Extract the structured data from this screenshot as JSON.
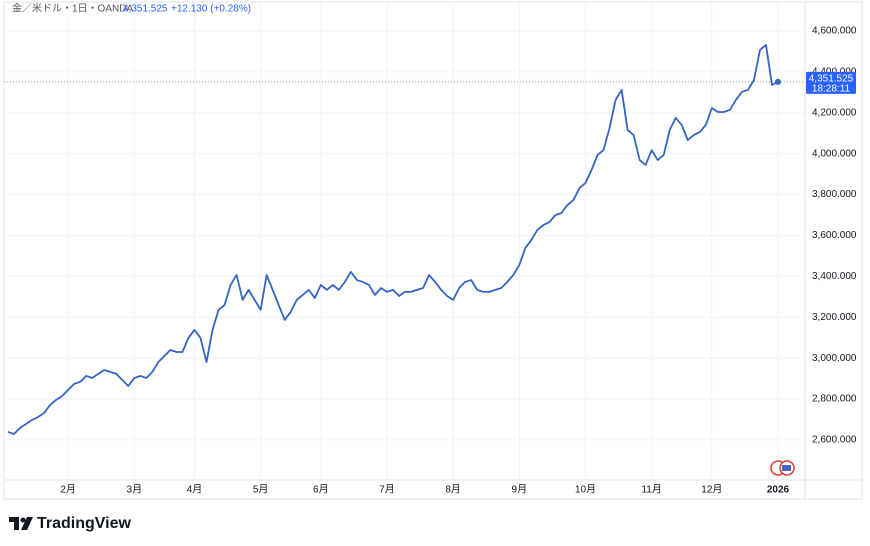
{
  "header": {
    "symbol": "金／米ドル・1日・OANDA",
    "price": "4,351.525",
    "change": "+12.130 (+0.28%)"
  },
  "price_tag": {
    "price": "4,351.525",
    "countdown": "18:28:11"
  },
  "branding": "TradingView",
  "chart_data": {
    "type": "line",
    "categories": [
      null,
      null,
      null,
      null,
      null,
      null,
      null,
      null,
      null,
      null,
      "2月",
      null,
      null,
      null,
      null,
      null,
      null,
      null,
      null,
      null,
      null,
      "3月",
      null,
      null,
      null,
      null,
      null,
      null,
      null,
      null,
      null,
      "4月",
      null,
      null,
      null,
      null,
      null,
      null,
      null,
      null,
      null,
      null,
      "5月",
      null,
      null,
      null,
      null,
      null,
      null,
      null,
      null,
      null,
      "6月",
      null,
      null,
      null,
      null,
      null,
      null,
      null,
      null,
      null,
      null,
      "7月",
      null,
      null,
      null,
      null,
      null,
      null,
      null,
      null,
      null,
      null,
      "8月",
      null,
      null,
      null,
      null,
      null,
      null,
      null,
      null,
      null,
      null,
      "9月",
      null,
      null,
      null,
      null,
      null,
      null,
      null,
      null,
      null,
      null,
      "10月",
      null,
      null,
      null,
      null,
      null,
      null,
      null,
      null,
      null,
      null,
      "11月",
      null,
      null,
      null,
      null,
      null,
      null,
      null,
      null,
      null,
      "12月",
      null,
      null,
      null,
      null,
      null,
      null,
      null,
      null,
      null,
      null,
      "2026"
    ],
    "series": [
      {
        "color": "#3465c5",
        "values": [
          2639,
          2629,
          2659,
          2678,
          2698,
          2712,
          2732,
          2771,
          2796,
          2815,
          2845,
          2874,
          2884,
          2913,
          2903,
          2923,
          2942,
          2933,
          2923,
          2893,
          2864,
          2903,
          2913,
          2903,
          2933,
          2981,
          3011,
          3040,
          3030,
          3030,
          3099,
          3138,
          3099,
          2981,
          3138,
          3236,
          3260,
          3358,
          3407,
          3285,
          3334,
          3285,
          3236,
          3407,
          3334,
          3260,
          3187,
          3226,
          3285,
          3309,
          3334,
          3294,
          3358,
          3334,
          3358,
          3334,
          3373,
          3422,
          3382,
          3373,
          3358,
          3309,
          3343,
          3324,
          3334,
          3304,
          3324,
          3324,
          3334,
          3343,
          3407,
          3373,
          3334,
          3304,
          3285,
          3343,
          3373,
          3382,
          3334,
          3324,
          3324,
          3334,
          3343,
          3373,
          3407,
          3456,
          3539,
          3578,
          3627,
          3651,
          3666,
          3700,
          3710,
          3749,
          3774,
          3832,
          3857,
          3920,
          3994,
          4018,
          4126,
          4263,
          4312,
          4116,
          4091,
          3969,
          3945,
          4018,
          3969,
          3994,
          4116,
          4175,
          4140,
          4067,
          4091,
          4106,
          4140,
          4223,
          4204,
          4204,
          4214,
          4263,
          4302,
          4312,
          4360,
          4507,
          4532,
          4336,
          4351.525
        ]
      }
    ],
    "ylim": [
      2404,
      4654
    ],
    "yticks": [
      {
        "value": 2600,
        "label": "2,600.000"
      },
      {
        "value": 2800,
        "label": "2,800.000"
      },
      {
        "value": 3000,
        "label": "3,000.000"
      },
      {
        "value": 3200,
        "label": "3,200.000"
      },
      {
        "value": 3400,
        "label": "3,400.000"
      },
      {
        "value": 3600,
        "label": "3,600.000"
      },
      {
        "value": 3800,
        "label": "3,800.000"
      },
      {
        "value": 4000,
        "label": "4,000.000"
      },
      {
        "value": 4200,
        "label": "4,200.000"
      },
      {
        "value": 4400,
        "label": "4,400.000"
      },
      {
        "value": 4600,
        "label": "4,600.000"
      }
    ],
    "grid": true
  }
}
